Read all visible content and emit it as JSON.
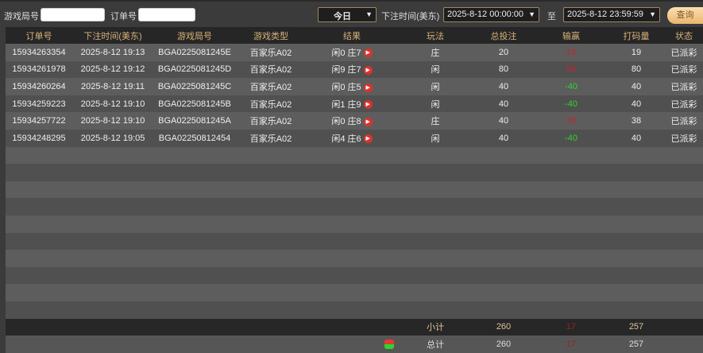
{
  "filters": {
    "round_label": "游戏局号",
    "round_value": "",
    "order_label": "订单号",
    "order_value": "",
    "period": "今日",
    "time_label": "下注时间(美东)",
    "start": "2025-8-12 00:00:00",
    "to_label": "至",
    "end": "2025-8-12 23:59:59",
    "query_button": "查询"
  },
  "table": {
    "headers": [
      "订单号",
      "下注时间(美东)",
      "游戏局号",
      "游戏类型",
      "结果",
      "玩法",
      "总投注",
      "输赢",
      "打码量",
      "状态"
    ],
    "rows": [
      {
        "order": "15934263354",
        "time": "2025-8-12 19:13",
        "round": "BGA0225081245E",
        "game": "百家乐A02",
        "result": "闲0 庄7",
        "bet": "庄",
        "total": "20",
        "winloss": "19",
        "valid": "19",
        "status": "已派彩"
      },
      {
        "order": "15934261978",
        "time": "2025-8-12 19:12",
        "round": "BGA0225081245D",
        "game": "百家乐A02",
        "result": "闲9 庄7",
        "bet": "闲",
        "total": "80",
        "winloss": "80",
        "valid": "80",
        "status": "已派彩"
      },
      {
        "order": "15934260264",
        "time": "2025-8-12 19:11",
        "round": "BGA0225081245C",
        "game": "百家乐A02",
        "result": "闲0 庄5",
        "bet": "闲",
        "total": "40",
        "winloss": "-40",
        "valid": "40",
        "status": "已派彩"
      },
      {
        "order": "15934259223",
        "time": "2025-8-12 19:10",
        "round": "BGA0225081245B",
        "game": "百家乐A02",
        "result": "闲1 庄9",
        "bet": "闲",
        "total": "40",
        "winloss": "-40",
        "valid": "40",
        "status": "已派彩"
      },
      {
        "order": "15934257722",
        "time": "2025-8-12 19:10",
        "round": "BGA0225081245A",
        "game": "百家乐A02",
        "result": "闲0 庄8",
        "bet": "庄",
        "total": "40",
        "winloss": "38",
        "valid": "38",
        "status": "已派彩"
      },
      {
        "order": "15934248295",
        "time": "2025-8-12 19:05",
        "round": "BGA02250812454",
        "game": "百家乐A02",
        "result": "闲4 庄6",
        "bet": "闲",
        "total": "40",
        "winloss": "-40",
        "valid": "40",
        "status": "已派彩"
      }
    ],
    "subtotal": {
      "label": "小计",
      "total": "260",
      "winloss": "17",
      "valid": "257"
    },
    "grandtotal": {
      "label": "总计",
      "total": "260",
      "winloss": "17",
      "valid": "257"
    }
  },
  "colors": {
    "win": "#c0262a",
    "lose": "#2bd52b",
    "header_text": "#d6b27a"
  }
}
